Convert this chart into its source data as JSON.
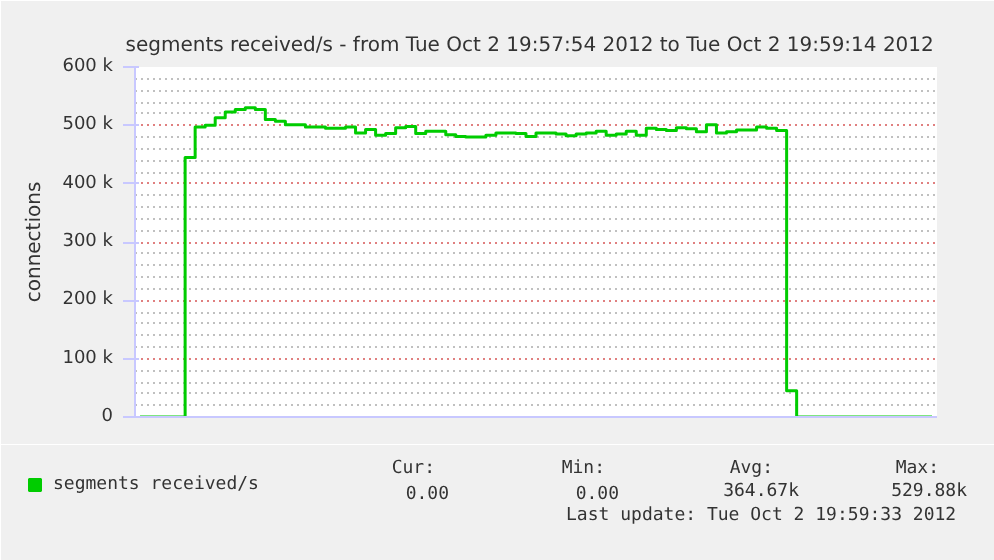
{
  "chart_data": {
    "type": "step",
    "title": "segments received/s - from Tue Oct  2 19:57:54 2012 to Tue Oct  2 19:59:14 2012",
    "ylabel": "connections",
    "categories": [
      null,
      null,
      null,
      null,
      null,
      null,
      null,
      null,
      null,
      null,
      null,
      null,
      null,
      null,
      null,
      null,
      null,
      null,
      null,
      null,
      null,
      null,
      null,
      null,
      null,
      null,
      null,
      null,
      null,
      null,
      null,
      null,
      null,
      null,
      null,
      null,
      null,
      null,
      null,
      null,
      null,
      null,
      null,
      null,
      null,
      null,
      null,
      null,
      null,
      null,
      null,
      null,
      null,
      null,
      null,
      null,
      null,
      null,
      null,
      null,
      null,
      null,
      null,
      null,
      null,
      null,
      null,
      null,
      null,
      null,
      null,
      null,
      null,
      null,
      null,
      null,
      null,
      null,
      null,
      null
    ],
    "series": [
      {
        "name": "segments received/s",
        "color": "#00cc00",
        "values": [
          0,
          0,
          0,
          0,
          0,
          445000,
          497000,
          500000,
          513000,
          523000,
          527000,
          530000,
          527000,
          510000,
          507000,
          501000,
          501000,
          497000,
          497000,
          495000,
          495000,
          497000,
          487000,
          493000,
          483000,
          486000,
          496000,
          498000,
          486000,
          490000,
          490000,
          484000,
          481000,
          480000,
          480000,
          483000,
          487000,
          487000,
          486000,
          481000,
          487000,
          487000,
          485000,
          482000,
          485000,
          487000,
          490000,
          483000,
          485000,
          490000,
          483000,
          495000,
          493000,
          491000,
          496000,
          494000,
          489000,
          501000,
          487000,
          489000,
          492000,
          492000,
          497000,
          495000,
          491000,
          45000,
          0,
          0,
          0,
          0,
          0,
          0,
          0,
          0,
          0,
          0,
          0,
          0,
          0,
          0
        ]
      }
    ],
    "ylim": [
      0,
      600000
    ],
    "yticks": [
      {
        "value": 0,
        "label": "0"
      },
      {
        "value": 100000,
        "label": "100 k"
      },
      {
        "value": 200000,
        "label": "200 k"
      },
      {
        "value": 300000,
        "label": "300 k"
      },
      {
        "value": 400000,
        "label": "400 k"
      },
      {
        "value": 500000,
        "label": "500 k"
      },
      {
        "value": 600000,
        "label": "600 k"
      }
    ],
    "tick_labels": "y",
    "grid": "y",
    "legend": "bottom",
    "line_style": "solid",
    "marker": "none",
    "annotations": [
      "Cur:",
      "Min:",
      "Avg:",
      "Max:",
      "0.00",
      "0.00",
      "364.67k",
      "529.88k",
      "Last update: Tue Oct  2 19:59:33 2012"
    ]
  }
}
